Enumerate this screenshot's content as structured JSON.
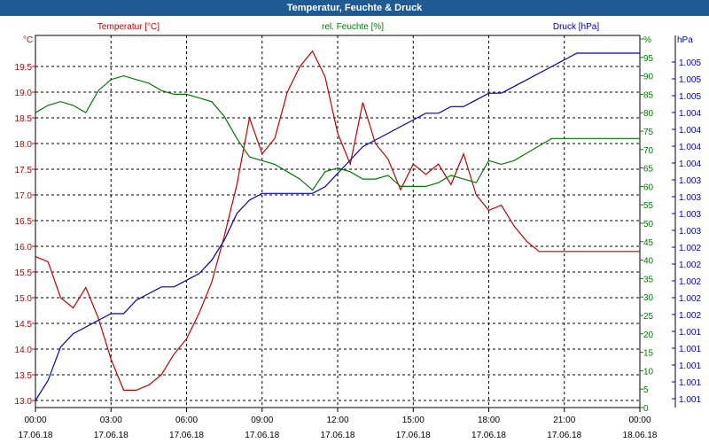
{
  "window": {
    "title": "Temperatur, Feuchte & Druck"
  },
  "chart_data": {
    "type": "line",
    "title": "Temperatur, Feuchte & Druck",
    "grid": true,
    "colors": {
      "temperature": "#c00000",
      "humidity": "#007a00",
      "pressure": "#0000b4",
      "title_bar": "#1f5a92"
    },
    "x": {
      "ticks": [
        {
          "time": "00:00",
          "date": "17.06.18"
        },
        {
          "time": "03:00",
          "date": "17.06.18"
        },
        {
          "time": "06:00",
          "date": "17.06.18"
        },
        {
          "time": "09:00",
          "date": "17.06.18"
        },
        {
          "time": "12:00",
          "date": "17.06.18"
        },
        {
          "time": "15:00",
          "date": "17.06.18"
        },
        {
          "time": "18:00",
          "date": "17.06.18"
        },
        {
          "time": "21:00",
          "date": "17.06.18"
        },
        {
          "time": "00:00",
          "date": "18.06.18"
        }
      ]
    },
    "axes": {
      "temperature": {
        "unit": "°C",
        "min": 13.0,
        "max": 20.0,
        "ticks": [
          "13.0",
          "13.5",
          "14.0",
          "14.5",
          "15.0",
          "15.5",
          "16.0",
          "16.5",
          "17.0",
          "17.5",
          "18.0",
          "18.5",
          "19.0",
          "19.5"
        ]
      },
      "humidity": {
        "unit": "%",
        "min": 0,
        "max": 100,
        "ticks": [
          "0",
          "5",
          "10",
          "15",
          "20",
          "25",
          "30",
          "35",
          "40",
          "45",
          "50",
          "55",
          "60",
          "65",
          "70",
          "75",
          "80",
          "85",
          "90",
          "95",
          "%"
        ]
      },
      "pressure": {
        "unit": "hPa",
        "ticks": [
          "1.001",
          "1.001",
          "1.001",
          "1.001",
          "1.001",
          "1.002",
          "1.002",
          "1.002",
          "1.002",
          "1.002",
          "1.003",
          "1.003",
          "1.003",
          "1.003",
          "1.004",
          "1.004",
          "1.004",
          "1.004",
          "1.005",
          "1.005",
          "1.005"
        ],
        "top_label": "hPa"
      }
    },
    "series": [
      {
        "name": "Temperatur [°C]",
        "key": "temperature",
        "x": [
          0,
          0.5,
          1,
          1.5,
          2,
          2.5,
          3,
          3.5,
          4,
          4.5,
          5,
          5.5,
          6,
          6.5,
          7,
          7.5,
          8,
          8.5,
          9,
          9.5,
          10,
          10.5,
          11,
          11.5,
          12,
          12.5,
          13,
          13.5,
          14,
          14.5,
          15,
          15.5,
          16,
          16.5,
          17,
          17.5,
          18,
          18.5,
          19,
          19.5,
          20,
          20.5,
          21,
          21.5,
          22,
          22.5,
          23,
          23.5,
          24
        ],
        "y": [
          15.8,
          15.7,
          15.0,
          14.8,
          15.2,
          14.6,
          13.8,
          13.2,
          13.2,
          13.3,
          13.5,
          13.9,
          14.2,
          14.7,
          15.3,
          16.2,
          17.2,
          18.5,
          17.8,
          18.1,
          19.0,
          19.5,
          19.8,
          19.3,
          18.2,
          17.6,
          18.8,
          18.0,
          17.7,
          17.1,
          17.6,
          17.4,
          17.6,
          17.2,
          17.8,
          17.0,
          16.7,
          16.8,
          16.4,
          16.1,
          15.9,
          15.9,
          15.9,
          15.9,
          15.9,
          15.9,
          15.9,
          15.9,
          15.9
        ]
      },
      {
        "name": "rel. Feuchte [%]",
        "key": "humidity",
        "x": [
          0,
          0.5,
          1,
          1.5,
          2,
          2.5,
          3,
          3.5,
          4,
          4.5,
          5,
          5.5,
          6,
          6.5,
          7,
          7.5,
          8,
          8.5,
          9,
          9.5,
          10,
          10.5,
          11,
          11.5,
          12,
          12.5,
          13,
          13.5,
          14,
          14.5,
          15,
          15.5,
          16,
          16.5,
          17,
          17.5,
          18,
          18.5,
          19,
          19.5,
          20,
          20.5,
          21,
          21.5,
          22,
          22.5,
          23,
          23.5,
          24
        ],
        "y": [
          80,
          82,
          83,
          82,
          80,
          86,
          89,
          90,
          89,
          88,
          86,
          85,
          85,
          84,
          83,
          79,
          73,
          68,
          67,
          66,
          64,
          62,
          59,
          64,
          65,
          64,
          62,
          62,
          63,
          60,
          60,
          60,
          61,
          63,
          62,
          61,
          67,
          66,
          67,
          69,
          71,
          73,
          73,
          73,
          73,
          73,
          73,
          73,
          73
        ]
      },
      {
        "name": "Druck [hPa]",
        "key": "pressure",
        "x": [
          0,
          0.5,
          1,
          1.5,
          2,
          2.5,
          3,
          3.5,
          4,
          4.5,
          5,
          5.5,
          6,
          6.5,
          7,
          7.5,
          8,
          8.5,
          9,
          9.5,
          10,
          10.5,
          11,
          11.5,
          12,
          12.5,
          13,
          13.5,
          14,
          14.5,
          15,
          15.5,
          16,
          16.5,
          17,
          17.5,
          18,
          18.5,
          19,
          19.5,
          20,
          20.5,
          21,
          21.5,
          22,
          22.5,
          23,
          23.5,
          24
        ],
        "y": [
          1.0003,
          1.0006,
          1.0011,
          1.0013,
          1.0014,
          1.0015,
          1.0016,
          1.0016,
          1.0018,
          1.0019,
          1.002,
          1.002,
          1.0021,
          1.0022,
          1.0024,
          1.0027,
          1.0031,
          1.0033,
          1.0034,
          1.0034,
          1.0034,
          1.0034,
          1.0034,
          1.0035,
          1.0037,
          1.0039,
          1.0041,
          1.0042,
          1.0043,
          1.0044,
          1.0045,
          1.0046,
          1.0046,
          1.0047,
          1.0047,
          1.0048,
          1.0049,
          1.0049,
          1.005,
          1.0051,
          1.0052,
          1.0053,
          1.0054,
          1.0055,
          1.0055,
          1.0055,
          1.0055,
          1.0055,
          1.0055
        ]
      }
    ],
    "legend": {
      "temperature": "Temperatur [°C]",
      "humidity": "rel. Feuchte [%]",
      "pressure": "Druck [hPa]"
    }
  }
}
